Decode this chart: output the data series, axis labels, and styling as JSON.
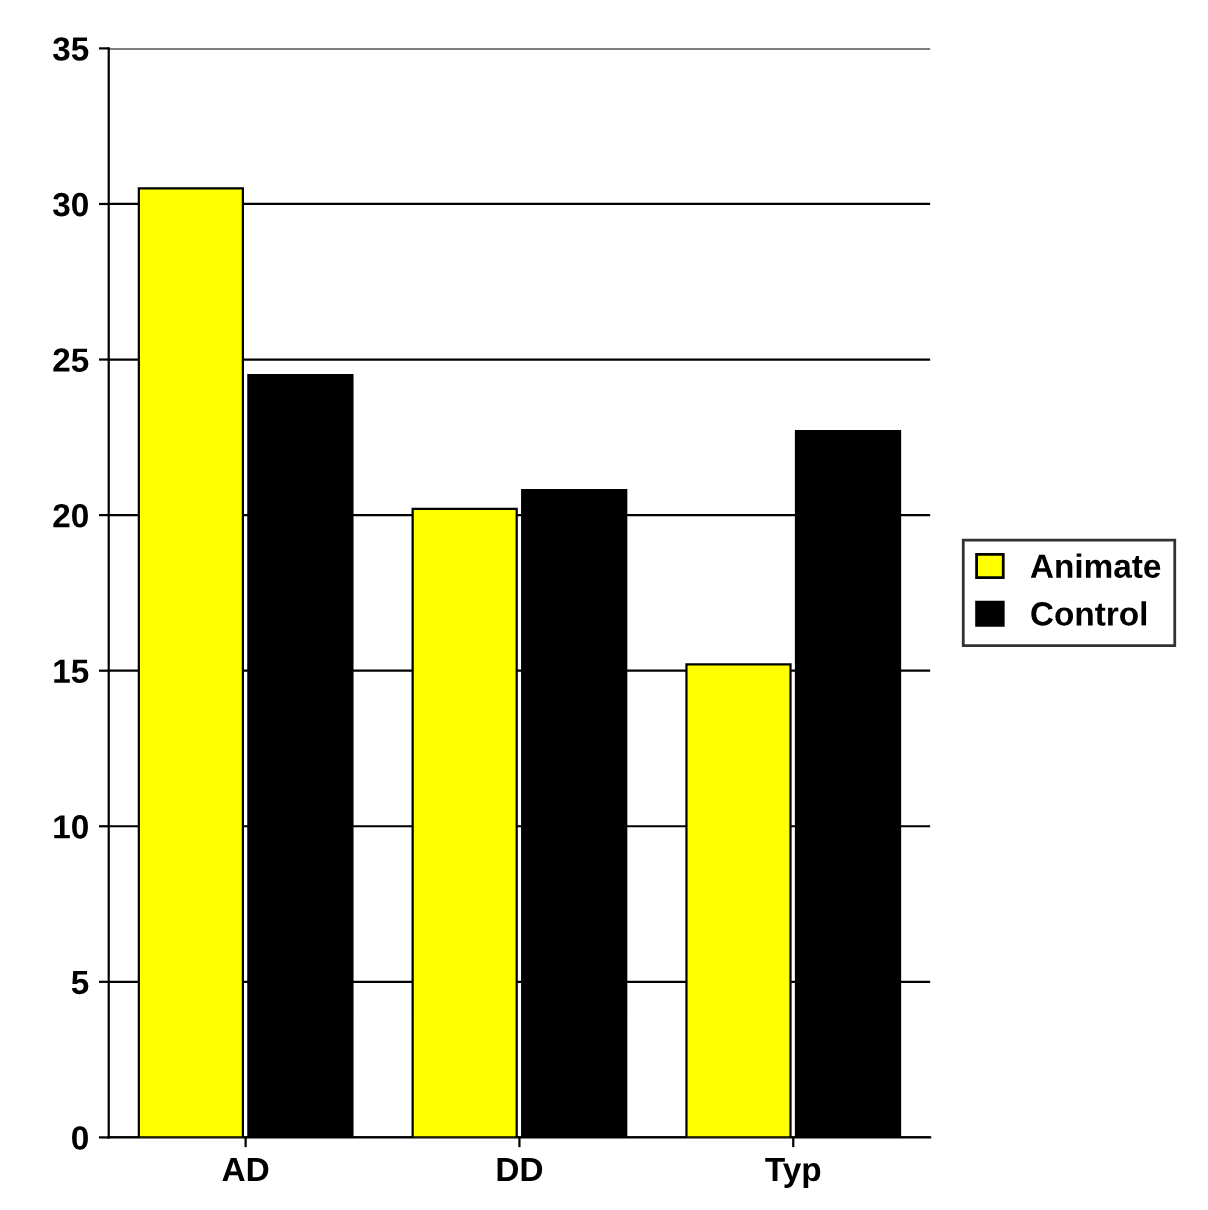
{
  "chart_data": {
    "type": "bar",
    "categories": [
      "AD",
      "DD",
      "Typ"
    ],
    "series": [
      {
        "name": "Animate",
        "color": "#ffff00",
        "values": [
          30.5,
          20.2,
          15.2
        ]
      },
      {
        "name": "Control",
        "color": "#000000",
        "values": [
          24.5,
          20.8,
          22.7
        ]
      }
    ],
    "ylim": [
      0,
      35
    ],
    "yticks": [
      0,
      5,
      10,
      15,
      20,
      25,
      30,
      35
    ],
    "grid": "y",
    "legend": "right"
  }
}
